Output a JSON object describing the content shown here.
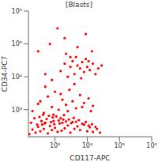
{
  "chart_data": {
    "type": "scatter",
    "title": "[Blasts]",
    "x_label": "CD117-APC",
    "y_label": "CD34-PC7",
    "log": true,
    "color": "#ff0000",
    "xlim": [
      150,
      1000000
    ],
    "ylim": [
      150,
      1000000
    ],
    "xticks": [
      {
        "value": 1000,
        "label": "10³"
      },
      {
        "value": 10000,
        "label": "10⁴"
      },
      {
        "value": 100000,
        "label": "10⁵"
      },
      {
        "value": 1000000,
        "label": "10⁶"
      }
    ],
    "yticks": [
      {
        "value": 1000,
        "label": "10³"
      },
      {
        "value": 10000,
        "label": "10⁴"
      },
      {
        "value": 100000,
        "label": "10⁵"
      },
      {
        "value": 1000000,
        "label": "10⁶"
      }
    ],
    "x": [
      160,
      200,
      250,
      300,
      350,
      400,
      450,
      500,
      600,
      700,
      800,
      900,
      1000,
      1200,
      1400,
      1600,
      1800,
      2000,
      2500,
      3000,
      3500,
      4000,
      5000,
      6000,
      8000,
      10000,
      12000,
      15000,
      20000,
      25000,
      180,
      230,
      280,
      330,
      380,
      430,
      480,
      550,
      650,
      750,
      850,
      950,
      1100,
      1300,
      1500,
      1700,
      1900,
      2200,
      2700,
      3200,
      3800,
      4500,
      5500,
      7000,
      9000,
      11000,
      14000,
      18000,
      200,
      300,
      450,
      600,
      800,
      1000,
      1300,
      1700,
      2200,
      2800,
      3500,
      4500,
      6000,
      8000,
      11000,
      15000,
      500,
      900,
      1500,
      2500,
      4000,
      7000,
      13000,
      350,
      1500,
      2000,
      2500,
      3000,
      3500,
      4000,
      5000,
      6000,
      7000,
      8000,
      9000,
      10000,
      12000,
      15000,
      18000,
      22000,
      28000,
      4500,
      6500,
      11000,
      2200,
      800,
      500,
      300,
      700,
      2000,
      5000,
      9000,
      1200,
      3000,
      14000
    ],
    "values": [
      180,
      250,
      200,
      300,
      220,
      350,
      260,
      400,
      190,
      320,
      240,
      450,
      280,
      210,
      380,
      230,
      500,
      270,
      330,
      200,
      420,
      260,
      310,
      240,
      350,
      220,
      290,
      210,
      260,
      200,
      400,
      550,
      350,
      600,
      450,
      700,
      380,
      520,
      650,
      420,
      580,
      360,
      620,
      470,
      550,
      400,
      680,
      440,
      500,
      390,
      560,
      430,
      480,
      370,
      420,
      330,
      360,
      300,
      900,
      1500,
      800,
      2500,
      1200,
      3500,
      1000,
      2000,
      1400,
      4000,
      1800,
      1100,
      2800,
      1600,
      2200,
      1300,
      5000,
      700,
      3000,
      900,
      6000,
      1200,
      900,
      1800,
      15000,
      25000,
      10000,
      20000,
      30000,
      12000,
      22000,
      18000,
      28000,
      14000,
      35000,
      20000,
      16000,
      25000,
      12000,
      18000,
      22000,
      40000,
      9000,
      30000,
      50000,
      8000,
      12000,
      60000,
      100000,
      150000,
      80000,
      200000,
      300000,
      40000,
      60000
    ]
  }
}
